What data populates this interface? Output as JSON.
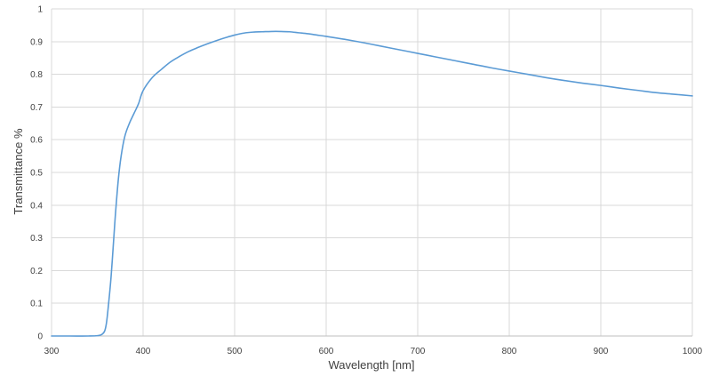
{
  "chart_data": {
    "type": "line",
    "title": "",
    "xlabel": "Wavelength [nm]",
    "ylabel": "Transmittance %",
    "xlim": [
      300,
      1000
    ],
    "ylim": [
      0,
      1
    ],
    "xticks": [
      300,
      400,
      500,
      600,
      700,
      800,
      900,
      1000
    ],
    "xtick_labels": [
      "300",
      "400",
      "500",
      "600",
      "700",
      "800",
      "900",
      "1000"
    ],
    "yticks": [
      0,
      0.1,
      0.2,
      0.3,
      0.4,
      0.5,
      0.6,
      0.7,
      0.8,
      0.9,
      1
    ],
    "ytick_labels": [
      "0",
      "0.1",
      "0.2",
      "0.3",
      "0.4",
      "0.5",
      "0.6",
      "0.7",
      "0.8",
      "0.9",
      "1"
    ],
    "grid": true,
    "legend": "none",
    "series": [
      {
        "color": "#5b9bd5",
        "x": [
          300,
          320,
          340,
          350,
          355,
          358,
          360,
          362,
          365,
          368,
          370,
          373,
          376,
          380,
          385,
          390,
          395,
          400,
          410,
          420,
          430,
          440,
          450,
          460,
          470,
          480,
          490,
          500,
          510,
          520,
          530,
          540,
          550,
          560,
          570,
          580,
          590,
          600,
          620,
          640,
          660,
          680,
          700,
          720,
          740,
          760,
          780,
          800,
          820,
          840,
          860,
          880,
          900,
          920,
          940,
          960,
          980,
          1000
        ],
        "y": [
          0,
          0,
          0,
          0.001,
          0.005,
          0.015,
          0.04,
          0.09,
          0.18,
          0.3,
          0.38,
          0.48,
          0.55,
          0.61,
          0.65,
          0.68,
          0.71,
          0.75,
          0.79,
          0.815,
          0.838,
          0.855,
          0.87,
          0.882,
          0.893,
          0.903,
          0.912,
          0.92,
          0.926,
          0.929,
          0.93,
          0.931,
          0.931,
          0.93,
          0.927,
          0.924,
          0.92,
          0.916,
          0.907,
          0.897,
          0.886,
          0.875,
          0.864,
          0.853,
          0.842,
          0.831,
          0.82,
          0.81,
          0.8,
          0.79,
          0.781,
          0.773,
          0.766,
          0.758,
          0.751,
          0.744,
          0.739,
          0.734
        ]
      }
    ]
  }
}
